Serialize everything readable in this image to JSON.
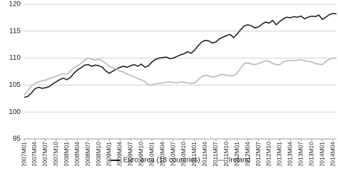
{
  "chart_data": {
    "type": "line",
    "categories": [
      "2007M01",
      null,
      null,
      "2007M04",
      null,
      null,
      "2007M07",
      null,
      null,
      "2007M10",
      null,
      null,
      "2008M01",
      null,
      null,
      "2008M04",
      null,
      null,
      "2008M07",
      null,
      null,
      "2008M10",
      null,
      null,
      "2009M01",
      null,
      null,
      "2009M04",
      null,
      null,
      "2009M07",
      null,
      null,
      "2009M10",
      null,
      null,
      "2010M01",
      null,
      null,
      "2010M04",
      null,
      null,
      "2010M07",
      null,
      null,
      "2010M10",
      null,
      null,
      "2011M01",
      null,
      null,
      "2011M04",
      null,
      null,
      "2011M07",
      null,
      null,
      "2011M10",
      null,
      null,
      "2012M01",
      null,
      null,
      "2012M04",
      null,
      null,
      "2012M07",
      null,
      null,
      "2012M10",
      null,
      null,
      "2013M01",
      null,
      null,
      "2013M04",
      null,
      null,
      "2013M07",
      null,
      null,
      "2013M10",
      null,
      null,
      "2014M01",
      null,
      null,
      "2014M04",
      null
    ],
    "series": [
      {
        "name": "Euro area (18 countries)",
        "color": "#222222",
        "values": [
          102.7,
          102.9,
          103.5,
          104.3,
          104.6,
          104.4,
          104.5,
          104.7,
          105.2,
          105.6,
          106.0,
          106.3,
          106.0,
          106.4,
          107.2,
          107.8,
          108.2,
          108.7,
          108.8,
          108.5,
          108.7,
          108.6,
          108.3,
          107.6,
          107.2,
          107.6,
          108.0,
          108.3,
          108.5,
          108.3,
          108.6,
          108.8,
          108.5,
          108.9,
          108.3,
          108.6,
          109.3,
          109.8,
          110.0,
          110.1,
          110.2,
          109.9,
          110.0,
          110.3,
          110.6,
          110.8,
          111.2,
          110.9,
          111.5,
          112.3,
          113.0,
          113.3,
          113.2,
          112.8,
          113.0,
          113.6,
          113.9,
          114.2,
          114.4,
          113.8,
          114.5,
          115.3,
          116.0,
          116.2,
          116.0,
          115.6,
          115.8,
          116.3,
          116.7,
          116.5,
          117.0,
          116.2,
          116.8,
          117.3,
          117.6,
          117.5,
          117.7,
          117.6,
          117.8,
          117.3,
          117.6,
          117.8,
          117.7,
          118.0,
          117.2,
          117.6,
          118.1,
          118.3,
          118.2
        ]
      },
      {
        "name": "Ireland",
        "color": "#b8b8b8",
        "values": [
          103.2,
          104.0,
          104.8,
          105.3,
          105.6,
          105.8,
          105.9,
          106.2,
          106.4,
          106.6,
          106.9,
          107.1,
          107.0,
          107.6,
          108.2,
          108.6,
          109.0,
          109.6,
          110.0,
          109.8,
          109.6,
          109.8,
          109.5,
          109.0,
          108.5,
          108.2,
          108.0,
          107.6,
          107.4,
          107.0,
          106.8,
          106.5,
          106.2,
          106.0,
          105.6,
          105.0,
          105.1,
          105.2,
          105.3,
          105.4,
          105.5,
          105.6,
          105.5,
          105.4,
          105.6,
          105.5,
          105.4,
          105.3,
          105.4,
          106.0,
          106.6,
          106.8,
          106.7,
          106.5,
          106.6,
          106.9,
          107.0,
          106.8,
          106.7,
          106.8,
          107.2,
          108.2,
          109.0,
          109.1,
          108.9,
          108.8,
          109.0,
          109.3,
          109.5,
          109.4,
          109.0,
          108.8,
          108.8,
          109.3,
          109.5,
          109.6,
          109.5,
          109.6,
          109.7,
          109.5,
          109.4,
          109.3,
          109.0,
          108.9,
          108.8,
          109.4,
          109.8,
          110.0,
          110.0
        ]
      }
    ],
    "ylim": [
      95,
      120
    ],
    "yticks": [
      95,
      100,
      105,
      110,
      115,
      120
    ],
    "grid": true,
    "legend": "bottom"
  }
}
